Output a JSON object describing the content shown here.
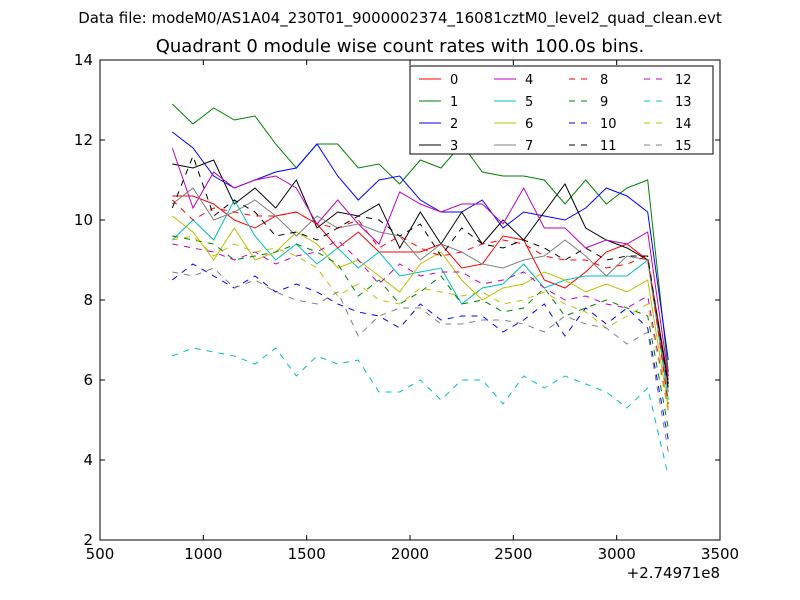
{
  "suptitle": "Data file: modeM0/AS1A04_230T01_9000002374_16081cztM0_level2_quad_clean.evt",
  "chart_data": {
    "type": "line",
    "title": "Quadrant 0 module wise count rates with 100.0s bins.",
    "xlabel": "",
    "ylabel": "",
    "xlim": [
      500,
      3500
    ],
    "ylim": [
      2,
      14
    ],
    "x_ticks": [
      "500",
      "1000",
      "1500",
      "2000",
      "2500",
      "3000",
      "3500"
    ],
    "y_ticks": [
      "2",
      "4",
      "6",
      "8",
      "10",
      "12",
      "14"
    ],
    "x_offset_label": "+2.74971e8",
    "grid": false,
    "legend_position": "top-right",
    "x": [
      850,
      950,
      1050,
      1150,
      1250,
      1350,
      1450,
      1550,
      1650,
      1750,
      1850,
      1950,
      2050,
      2150,
      2250,
      2350,
      2450,
      2550,
      2650,
      2750,
      2850,
      2950,
      3050,
      3150,
      3250
    ],
    "series": [
      {
        "name": "0",
        "color": "#ff0000",
        "dash": false,
        "values": [
          10.6,
          10.6,
          10.4,
          10.0,
          9.8,
          10.1,
          10.2,
          9.9,
          9.3,
          9.7,
          9.2,
          9.2,
          9.2,
          9.4,
          8.8,
          8.9,
          9.6,
          9.5,
          8.5,
          8.3,
          8.7,
          9.2,
          9.4,
          9.0,
          6.0
        ]
      },
      {
        "name": "1",
        "color": "#008000",
        "dash": false,
        "values": [
          12.9,
          12.4,
          12.8,
          12.5,
          12.6,
          11.9,
          11.3,
          11.9,
          11.9,
          11.3,
          11.4,
          10.9,
          11.5,
          11.3,
          11.9,
          11.2,
          11.1,
          11.1,
          11.0,
          10.4,
          11.0,
          10.4,
          10.8,
          11.0,
          6.2
        ]
      },
      {
        "name": "2",
        "color": "#0000ff",
        "dash": false,
        "values": [
          12.2,
          11.8,
          11.1,
          10.8,
          11.0,
          11.2,
          11.3,
          11.9,
          11.1,
          10.5,
          11.0,
          11.1,
          10.5,
          10.2,
          10.2,
          10.5,
          9.8,
          10.2,
          10.1,
          10.0,
          10.3,
          10.8,
          10.6,
          10.2,
          6.5
        ]
      },
      {
        "name": "3",
        "color": "#000000",
        "dash": false,
        "values": [
          11.4,
          11.3,
          11.5,
          10.4,
          10.8,
          10.3,
          11.0,
          9.8,
          10.2,
          10.1,
          10.4,
          9.3,
          10.2,
          9.4,
          10.2,
          9.4,
          10.0,
          9.5,
          10.2,
          10.9,
          9.8,
          9.5,
          9.3,
          9.0,
          5.9
        ]
      },
      {
        "name": "4",
        "color": "#bf00bf",
        "dash": false,
        "values": [
          11.8,
          10.3,
          11.2,
          10.8,
          11.0,
          11.1,
          10.8,
          9.9,
          10.5,
          9.9,
          9.4,
          10.7,
          10.4,
          10.2,
          10.4,
          10.4,
          9.9,
          10.8,
          9.8,
          9.8,
          9.3,
          9.5,
          9.4,
          9.7,
          6.1
        ]
      },
      {
        "name": "5",
        "color": "#00bfbf",
        "dash": false,
        "values": [
          9.5,
          10.0,
          9.5,
          10.5,
          9.6,
          9.0,
          9.4,
          8.9,
          9.3,
          8.8,
          9.2,
          8.6,
          8.7,
          8.8,
          7.9,
          8.3,
          8.4,
          8.9,
          8.3,
          8.5,
          8.6,
          8.6,
          8.6,
          9.0,
          5.5
        ]
      },
      {
        "name": "6",
        "color": "#bfbf00",
        "dash": false,
        "values": [
          10.1,
          9.7,
          9.0,
          9.8,
          9.0,
          9.2,
          9.7,
          9.4,
          8.8,
          9.0,
          8.6,
          8.2,
          8.9,
          9.2,
          8.5,
          8.0,
          8.3,
          8.4,
          8.7,
          8.5,
          8.2,
          8.4,
          8.2,
          8.5,
          5.3
        ]
      },
      {
        "name": "7",
        "color": "#808080",
        "dash": false,
        "values": [
          10.4,
          10.8,
          10.0,
          10.2,
          10.5,
          10.1,
          9.6,
          10.1,
          9.8,
          9.9,
          9.7,
          9.6,
          9.0,
          9.4,
          9.2,
          8.9,
          8.8,
          9.0,
          9.1,
          9.5,
          9.1,
          8.6,
          9.1,
          9.0,
          5.7
        ]
      },
      {
        "name": "8",
        "color": "#ff0000",
        "dash": true,
        "values": [
          10.5,
          10.0,
          10.3,
          10.2,
          10.1,
          10.1,
          10.2,
          9.9,
          9.8,
          10.0,
          9.3,
          9.6,
          9.3,
          9.1,
          9.2,
          9.4,
          9.5,
          9.4,
          9.1,
          9.0,
          9.0,
          8.8,
          8.9,
          9.1,
          5.4
        ]
      },
      {
        "name": "9",
        "color": "#008000",
        "dash": true,
        "values": [
          9.6,
          9.5,
          9.4,
          9.0,
          9.1,
          9.2,
          9.4,
          9.2,
          8.9,
          8.1,
          8.5,
          7.9,
          8.2,
          8.6,
          7.9,
          8.0,
          7.7,
          7.8,
          8.3,
          7.6,
          7.8,
          8.0,
          7.8,
          7.6,
          4.8
        ]
      },
      {
        "name": "10",
        "color": "#0000ff",
        "dash": true,
        "values": [
          8.5,
          8.9,
          8.6,
          8.3,
          8.6,
          8.2,
          8.4,
          8.2,
          7.9,
          7.7,
          7.6,
          7.3,
          7.9,
          7.5,
          7.6,
          7.6,
          7.2,
          7.5,
          7.9,
          7.1,
          7.8,
          7.4,
          7.8,
          7.3,
          4.5
        ]
      },
      {
        "name": "11",
        "color": "#000000",
        "dash": true,
        "values": [
          10.3,
          11.6,
          10.1,
          10.5,
          10.2,
          9.6,
          9.7,
          9.5,
          9.8,
          10.1,
          10.0,
          9.6,
          9.9,
          9.1,
          9.8,
          9.4,
          9.3,
          9.5,
          9.3,
          9.0,
          9.3,
          9.0,
          9.1,
          9.1,
          5.8
        ]
      },
      {
        "name": "12",
        "color": "#bf00bf",
        "dash": true,
        "values": [
          9.4,
          9.3,
          9.2,
          9.0,
          9.2,
          8.9,
          9.1,
          9.2,
          9.5,
          9.0,
          8.4,
          8.9,
          8.6,
          8.7,
          8.7,
          8.4,
          8.5,
          8.7,
          8.3,
          8.0,
          8.1,
          7.9,
          7.8,
          8.1,
          5.2
        ]
      },
      {
        "name": "13",
        "color": "#00bfbf",
        "dash": true,
        "values": [
          6.6,
          6.8,
          6.7,
          6.6,
          6.4,
          6.8,
          6.1,
          6.6,
          6.4,
          6.5,
          5.7,
          5.7,
          6.0,
          5.5,
          6.0,
          6.0,
          5.4,
          6.1,
          5.8,
          6.1,
          5.9,
          5.7,
          5.3,
          5.8,
          3.6
        ]
      },
      {
        "name": "14",
        "color": "#bfbf00",
        "dash": true,
        "values": [
          9.5,
          9.6,
          9.1,
          9.4,
          9.2,
          9.3,
          9.1,
          8.8,
          8.1,
          8.4,
          8.0,
          7.9,
          8.3,
          8.2,
          8.1,
          8.2,
          7.9,
          8.0,
          8.2,
          7.9,
          7.7,
          7.3,
          7.6,
          7.9,
          5.2
        ]
      },
      {
        "name": "15",
        "color": "#808080",
        "dash": true,
        "values": [
          8.7,
          8.6,
          8.8,
          8.3,
          8.5,
          8.2,
          8.0,
          7.9,
          8.2,
          7.1,
          7.6,
          7.8,
          7.8,
          7.4,
          7.4,
          7.5,
          7.5,
          7.4,
          7.2,
          7.6,
          7.4,
          7.3,
          6.9,
          7.2,
          4.2
        ]
      }
    ]
  }
}
